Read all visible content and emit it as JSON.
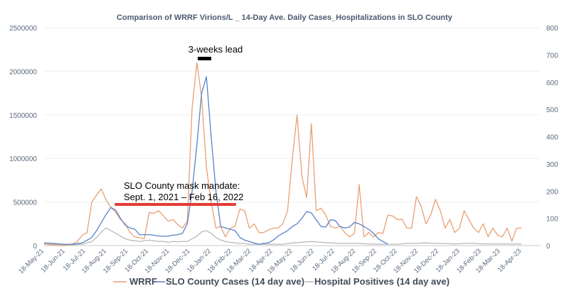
{
  "chart_data": {
    "type": "line",
    "title": "Comparison of WRRF  Virions/L _ 14-Day Ave. Daily Cases_Hospitalizations in SLO County",
    "y_left": {
      "min": 0,
      "max": 2500000,
      "ticks": [
        "0",
        "500000",
        "1000000",
        "1500000",
        "2000000",
        "2500000"
      ]
    },
    "y_right": {
      "min": 0,
      "max": 800,
      "ticks": [
        "0",
        "100",
        "200",
        "300",
        "400",
        "500",
        "600",
        "700",
        "800"
      ]
    },
    "x_range": [
      0,
      104
    ],
    "x_ticks": [
      {
        "label": "18-May-21",
        "x": 0
      },
      {
        "label": "18-Jun-21",
        "x": 4.4
      },
      {
        "label": "18-Jul-21",
        "x": 8.7
      },
      {
        "label": "18-Aug-21",
        "x": 13.1
      },
      {
        "label": "18-Sep-21",
        "x": 17.6
      },
      {
        "label": "18-Oct-21",
        "x": 21.9
      },
      {
        "label": "18-Nov-21",
        "x": 26.3
      },
      {
        "label": "18-Dec-21",
        "x": 30.6
      },
      {
        "label": "18-Jan-22",
        "x": 35.0
      },
      {
        "label": "18-Feb-22",
        "x": 39.4
      },
      {
        "label": "18-Mar-22",
        "x": 43.4
      },
      {
        "label": "18-Apr-22",
        "x": 47.9
      },
      {
        "label": "18-May-22",
        "x": 52.1
      },
      {
        "label": "18-Jun-22",
        "x": 56.6
      },
      {
        "label": "18-Jul-22",
        "x": 60.9
      },
      {
        "label": "18-Aug-22",
        "x": 65.3
      },
      {
        "label": "18-Sep-22",
        "x": 69.7
      },
      {
        "label": "18-Oct-22",
        "x": 74.0
      },
      {
        "label": "18-Nov-22",
        "x": 78.4
      },
      {
        "label": "18-Dec-22",
        "x": 82.7
      },
      {
        "label": "18-Jan-23",
        "x": 87.1
      },
      {
        "label": "18-Feb-23",
        "x": 91.6
      },
      {
        "label": "18-Mar-23",
        "x": 95.6
      },
      {
        "label": "18-Apr-23",
        "x": 100.0
      }
    ],
    "series": [
      {
        "name": "WRRF",
        "axis": "left",
        "color": "#e8a173",
        "points": [
          [
            0,
            20000
          ],
          [
            1,
            10000
          ],
          [
            2,
            10000
          ],
          [
            3,
            0
          ],
          [
            4,
            0
          ],
          [
            5,
            10000
          ],
          [
            6,
            20000
          ],
          [
            7,
            50000
          ],
          [
            8,
            120000
          ],
          [
            9,
            150000
          ],
          [
            10,
            500000
          ],
          [
            11,
            580000
          ],
          [
            12,
            650000
          ],
          [
            13,
            520000
          ],
          [
            14,
            440000
          ],
          [
            15,
            380000
          ],
          [
            16,
            300000
          ],
          [
            17,
            250000
          ],
          [
            18,
            150000
          ],
          [
            19,
            100000
          ],
          [
            20,
            90000
          ],
          [
            21,
            80000
          ],
          [
            22,
            380000
          ],
          [
            23,
            370000
          ],
          [
            24,
            400000
          ],
          [
            25,
            340000
          ],
          [
            26,
            280000
          ],
          [
            27,
            300000
          ],
          [
            28,
            240000
          ],
          [
            29,
            200000
          ],
          [
            30,
            280000
          ],
          [
            31,
            1580000
          ],
          [
            32,
            2100000
          ],
          [
            33,
            1700000
          ],
          [
            34,
            900000
          ],
          [
            35,
            500000
          ],
          [
            36,
            200000
          ],
          [
            37,
            220000
          ],
          [
            38,
            100000
          ],
          [
            39,
            200000
          ],
          [
            40,
            220000
          ],
          [
            41,
            420000
          ],
          [
            42,
            400000
          ],
          [
            43,
            200000
          ],
          [
            44,
            250000
          ],
          [
            45,
            150000
          ],
          [
            46,
            150000
          ],
          [
            47,
            180000
          ],
          [
            48,
            200000
          ],
          [
            49,
            200000
          ],
          [
            50,
            250000
          ],
          [
            51,
            400000
          ],
          [
            52,
            1000000
          ],
          [
            53,
            1500000
          ],
          [
            54,
            800000
          ],
          [
            55,
            550000
          ],
          [
            56,
            1400000
          ],
          [
            57,
            400000
          ],
          [
            58,
            430000
          ],
          [
            59,
            350000
          ],
          [
            60,
            220000
          ],
          [
            61,
            200000
          ],
          [
            62,
            220000
          ],
          [
            63,
            150000
          ],
          [
            64,
            100000
          ],
          [
            65,
            140000
          ],
          [
            66,
            700000
          ],
          [
            67,
            100000
          ],
          [
            68,
            150000
          ],
          [
            69,
            100000
          ],
          [
            70,
            150000
          ],
          [
            71,
            140000
          ],
          [
            72,
            350000
          ],
          [
            73,
            340000
          ],
          [
            74,
            300000
          ],
          [
            75,
            300000
          ],
          [
            76,
            200000
          ],
          [
            77,
            200000
          ],
          [
            78,
            560000
          ],
          [
            79,
            450000
          ],
          [
            80,
            250000
          ],
          [
            81,
            350000
          ],
          [
            82,
            530000
          ],
          [
            83,
            400000
          ],
          [
            84,
            200000
          ],
          [
            85,
            300000
          ],
          [
            86,
            150000
          ],
          [
            87,
            200000
          ],
          [
            88,
            400000
          ],
          [
            89,
            300000
          ],
          [
            90,
            200000
          ],
          [
            91,
            150000
          ],
          [
            92,
            250000
          ],
          [
            93,
            100000
          ],
          [
            94,
            200000
          ],
          [
            95,
            120000
          ],
          [
            96,
            100000
          ],
          [
            97,
            200000
          ],
          [
            98,
            50000
          ],
          [
            99,
            200000
          ],
          [
            100,
            200000
          ]
        ]
      },
      {
        "name": "SLO County Cases (14 day ave)",
        "axis": "right",
        "color": "#5b82c9",
        "points": [
          [
            0,
            10
          ],
          [
            2,
            8
          ],
          [
            4,
            5
          ],
          [
            6,
            5
          ],
          [
            8,
            10
          ],
          [
            10,
            30
          ],
          [
            11,
            55
          ],
          [
            12,
            85
          ],
          [
            13,
            115
          ],
          [
            14,
            140
          ],
          [
            15,
            130
          ],
          [
            16,
            100
          ],
          [
            17,
            75
          ],
          [
            18,
            65
          ],
          [
            19,
            60
          ],
          [
            20,
            40
          ],
          [
            21,
            40
          ],
          [
            22,
            40
          ],
          [
            23,
            38
          ],
          [
            24,
            35
          ],
          [
            25,
            35
          ],
          [
            26,
            35
          ],
          [
            27,
            38
          ],
          [
            28,
            40
          ],
          [
            29,
            45
          ],
          [
            30,
            80
          ],
          [
            31,
            200
          ],
          [
            32,
            370
          ],
          [
            33,
            560
          ],
          [
            34,
            620
          ],
          [
            35,
            400
          ],
          [
            36,
            200
          ],
          [
            37,
            70
          ],
          [
            38,
            65
          ],
          [
            39,
            60
          ],
          [
            40,
            55
          ],
          [
            41,
            30
          ],
          [
            42,
            20
          ],
          [
            43,
            15
          ],
          [
            44,
            10
          ],
          [
            45,
            5
          ],
          [
            46,
            8
          ],
          [
            47,
            10
          ],
          [
            48,
            20
          ],
          [
            49,
            35
          ],
          [
            50,
            45
          ],
          [
            51,
            55
          ],
          [
            52,
            70
          ],
          [
            53,
            80
          ],
          [
            54,
            100
          ],
          [
            55,
            125
          ],
          [
            56,
            120
          ],
          [
            57,
            95
          ],
          [
            58,
            70
          ],
          [
            59,
            68
          ],
          [
            60,
            95
          ],
          [
            61,
            92
          ],
          [
            62,
            70
          ],
          [
            63,
            65
          ],
          [
            64,
            68
          ],
          [
            65,
            85
          ],
          [
            66,
            80
          ],
          [
            67,
            70
          ],
          [
            68,
            60
          ],
          [
            69,
            45
          ],
          [
            70,
            25
          ],
          [
            71,
            15
          ],
          [
            72,
            5
          ]
        ]
      },
      {
        "name": "Hospital Positives (14 day ave)",
        "axis": "right",
        "color": "#b9b9b9",
        "points": [
          [
            0,
            5
          ],
          [
            2,
            5
          ],
          [
            4,
            3
          ],
          [
            6,
            3
          ],
          [
            8,
            5
          ],
          [
            10,
            15
          ],
          [
            11,
            30
          ],
          [
            12,
            50
          ],
          [
            13,
            65
          ],
          [
            14,
            55
          ],
          [
            15,
            45
          ],
          [
            16,
            35
          ],
          [
            17,
            25
          ],
          [
            18,
            20
          ],
          [
            19,
            18
          ],
          [
            20,
            15
          ],
          [
            21,
            18
          ],
          [
            22,
            20
          ],
          [
            23,
            18
          ],
          [
            24,
            15
          ],
          [
            25,
            15
          ],
          [
            26,
            12
          ],
          [
            27,
            15
          ],
          [
            28,
            14
          ],
          [
            29,
            15
          ],
          [
            30,
            15
          ],
          [
            31,
            25
          ],
          [
            32,
            35
          ],
          [
            33,
            50
          ],
          [
            34,
            55
          ],
          [
            35,
            45
          ],
          [
            36,
            30
          ],
          [
            37,
            20
          ],
          [
            38,
            15
          ],
          [
            39,
            12
          ],
          [
            40,
            10
          ],
          [
            41,
            8
          ],
          [
            42,
            8
          ],
          [
            43,
            5
          ],
          [
            44,
            5
          ],
          [
            46,
            5
          ],
          [
            48,
            5
          ],
          [
            50,
            5
          ],
          [
            52,
            10
          ],
          [
            54,
            12
          ],
          [
            56,
            15
          ],
          [
            58,
            12
          ],
          [
            60,
            10
          ],
          [
            62,
            8
          ],
          [
            64,
            8
          ],
          [
            66,
            8
          ],
          [
            68,
            6
          ],
          [
            70,
            5
          ],
          [
            72,
            5
          ],
          [
            74,
            5
          ],
          [
            76,
            8
          ],
          [
            78,
            8
          ],
          [
            80,
            10
          ],
          [
            82,
            8
          ],
          [
            84,
            8
          ],
          [
            86,
            6
          ],
          [
            88,
            8
          ],
          [
            90,
            8
          ],
          [
            92,
            6
          ],
          [
            94,
            6
          ],
          [
            96,
            6
          ],
          [
            98,
            6
          ],
          [
            100,
            6
          ]
        ]
      }
    ],
    "annotations": {
      "lead_label": "3-weeks lead",
      "mask_line1": "SLO County mask mandate:",
      "mask_line2": "Sept. 1, 2021 – Feb 16, 2022",
      "mask_range_x": [
        14.8,
        40.2
      ],
      "lead_range_x": [
        32.2,
        35.0
      ]
    },
    "legend": [
      "WRRF",
      "SLO County Cases (14 day ave)",
      "Hospital Positives (14 day ave)"
    ]
  }
}
